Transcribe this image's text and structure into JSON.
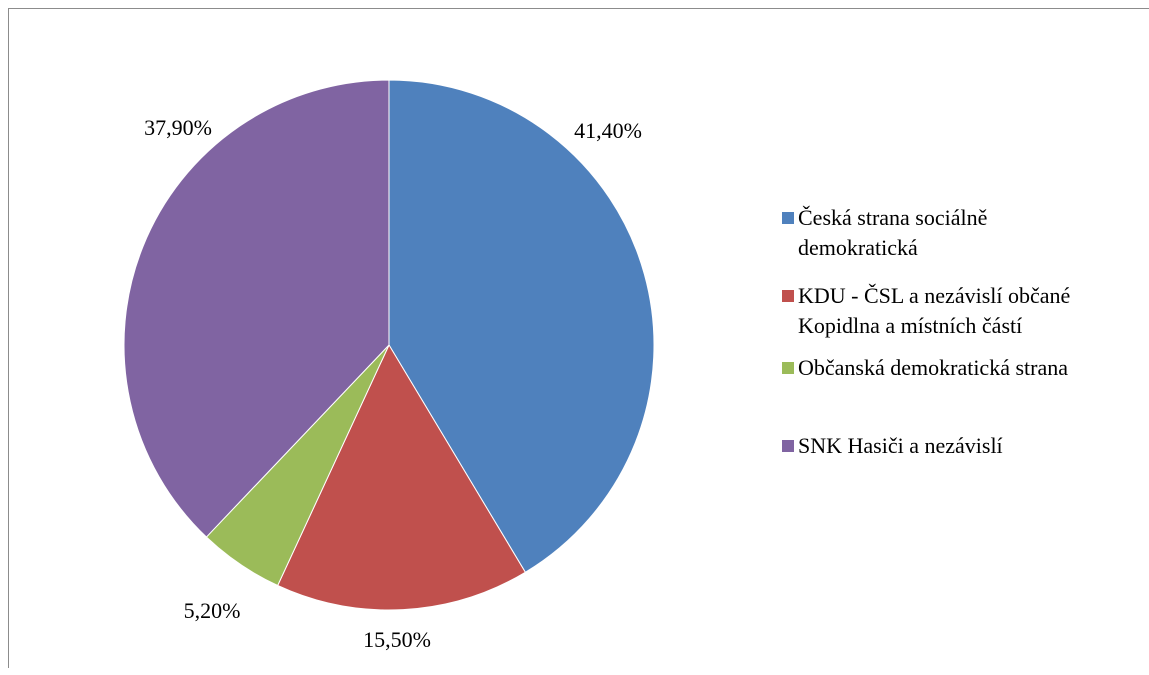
{
  "chart_data": {
    "type": "pie",
    "categories": [
      "Česká strana sociálně demokratická",
      "KDU - ČSL a nezávislí občané Kopidlna a místních částí",
      "Občanská demokratická strana",
      "SNK Hasiči a nezávislí"
    ],
    "values": [
      41.4,
      15.5,
      5.2,
      37.9
    ],
    "value_labels": [
      "41,40%",
      "15,50%",
      "5,20%",
      "37,90%"
    ],
    "colors": [
      "#4f81bd",
      "#c0504d",
      "#9bbb59",
      "#8064a2"
    ],
    "legend_position": "right",
    "title": ""
  },
  "legend": {
    "items": [
      {
        "label_line1": "Česká strana sociálně",
        "label_line2": "demokratická"
      },
      {
        "label_line1": "KDU - ČSL a nezávislí občané",
        "label_line2": "Kopidlna a místních částí"
      },
      {
        "label_line1": "Občanská demokratická strana",
        "label_line2": ""
      },
      {
        "label_line1": "SNK Hasiči a nezávislí",
        "label_line2": ""
      }
    ]
  }
}
